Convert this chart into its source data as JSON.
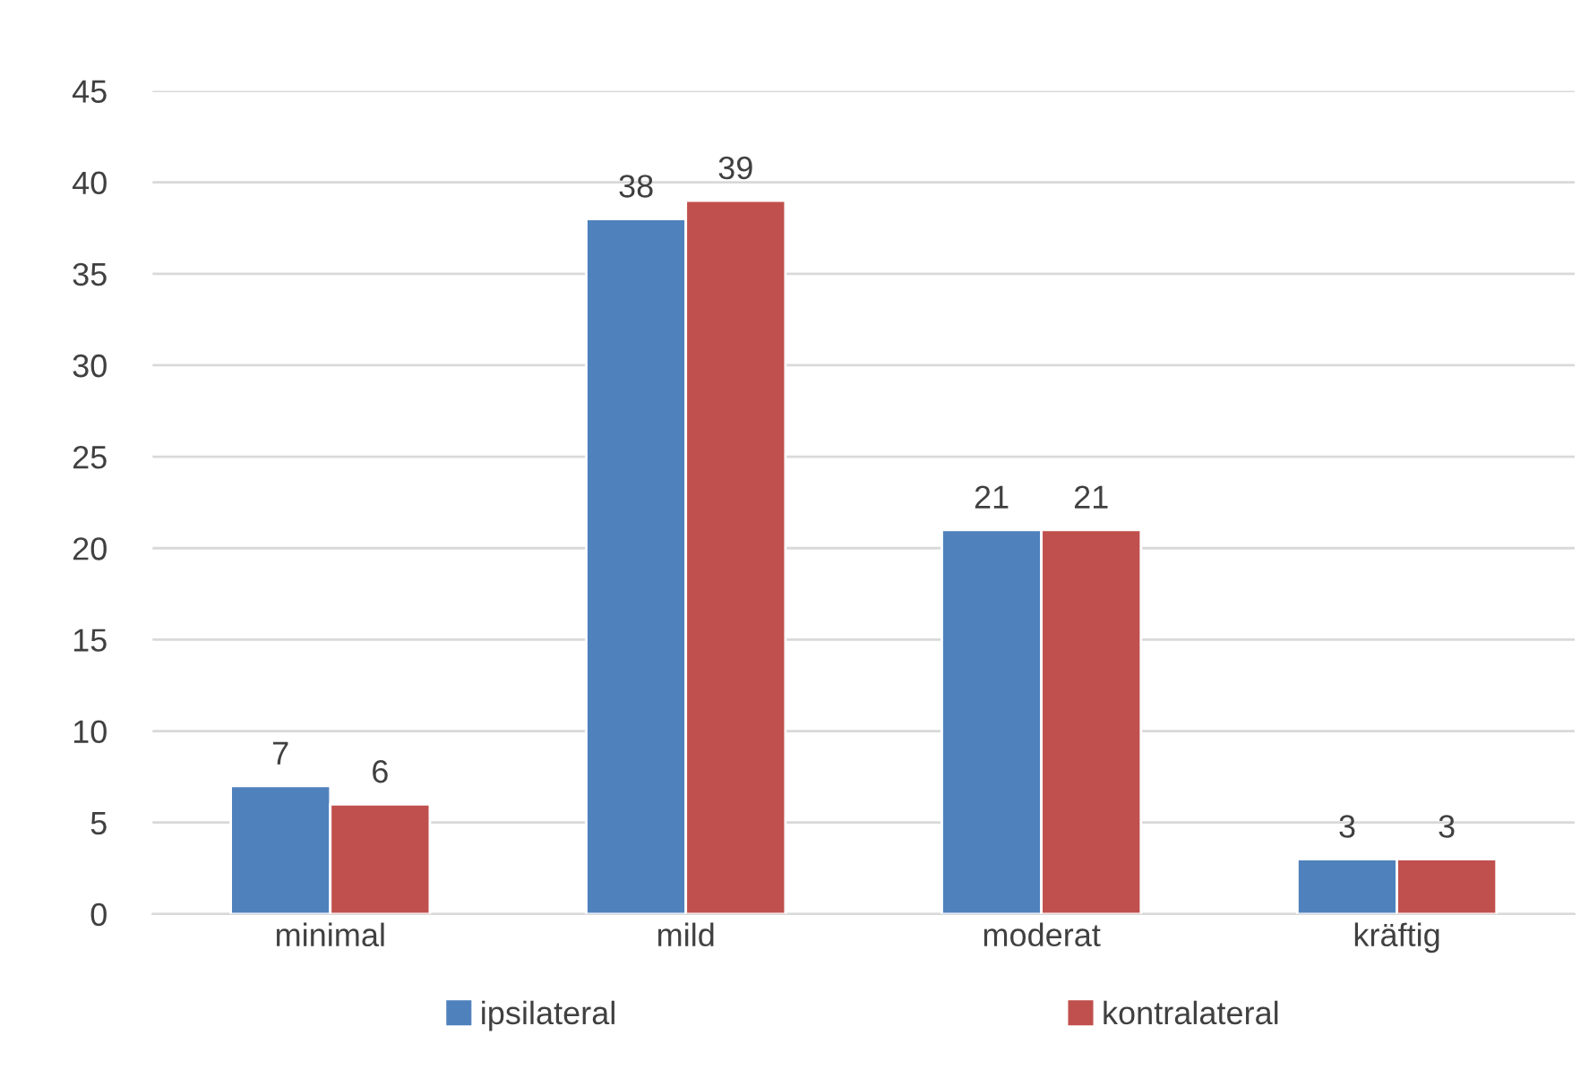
{
  "chart_data": {
    "type": "bar",
    "categories": [
      "minimal",
      "mild",
      "moderat",
      "kräftig"
    ],
    "series": [
      {
        "name": "ipsilateral",
        "color": "#4f81bd",
        "values": [
          7,
          38,
          21,
          3
        ]
      },
      {
        "name": "kontralateral",
        "color": "#c0504d",
        "values": [
          6,
          39,
          21,
          3
        ]
      }
    ],
    "ylim": [
      0,
      45
    ],
    "yticks": [
      0,
      5,
      10,
      15,
      20,
      25,
      30,
      35,
      40,
      45
    ],
    "grid": "y",
    "legend": "bottom",
    "data_labels": true
  }
}
